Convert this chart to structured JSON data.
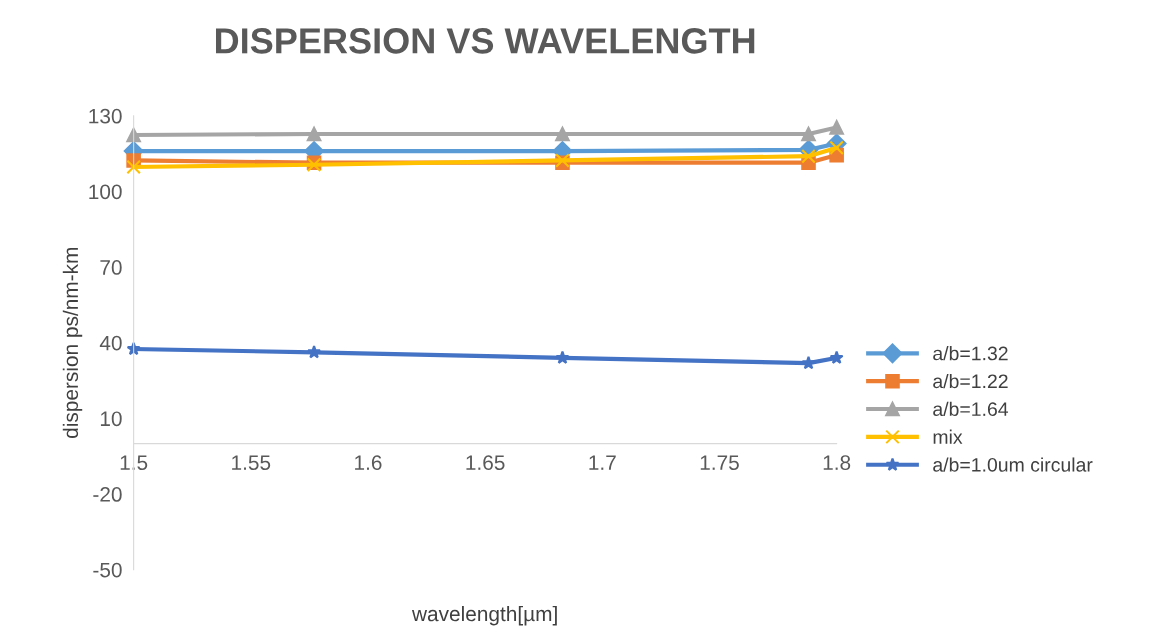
{
  "chart_data": {
    "type": "line",
    "title": "DISPERSION VS WAVELENGTH",
    "xlabel": "wavelength[µm]",
    "ylabel": "dispersion ps/nm-km",
    "x": [
      1.5,
      1.577,
      1.683,
      1.788,
      1.8
    ],
    "series": [
      {
        "name": "a/b=1.32",
        "color": "#5b9bd5",
        "marker": "diamond",
        "values": [
          116,
          116,
          116,
          116.5,
          119
        ]
      },
      {
        "name": "a/b=1.22",
        "color": "#ed7d31",
        "marker": "square",
        "values": [
          112.3,
          111.4,
          111.4,
          111.4,
          114.4
        ]
      },
      {
        "name": "a/b=1.64",
        "color": "#a5a5a5",
        "marker": "triangle",
        "values": [
          122.4,
          122.8,
          122.8,
          122.8,
          125.4
        ]
      },
      {
        "name": "mix",
        "color": "#ffc000",
        "marker": "cross",
        "values": [
          109.7,
          110.6,
          112.3,
          114,
          117.3
        ]
      },
      {
        "name": "a/b=1.0um circular",
        "color": "#4472c4",
        "marker": "star",
        "values": [
          37.5,
          36.2,
          34,
          31.9,
          34
        ]
      }
    ],
    "xlim": [
      1.5,
      1.8
    ],
    "xticks": [
      1.5,
      1.55,
      1.6,
      1.65,
      1.7,
      1.75,
      1.8
    ],
    "ylim": [
      -50,
      130
    ],
    "yticks": [
      -50,
      -20,
      10,
      40,
      70,
      100,
      130
    ],
    "grid": false,
    "legend": "right"
  }
}
